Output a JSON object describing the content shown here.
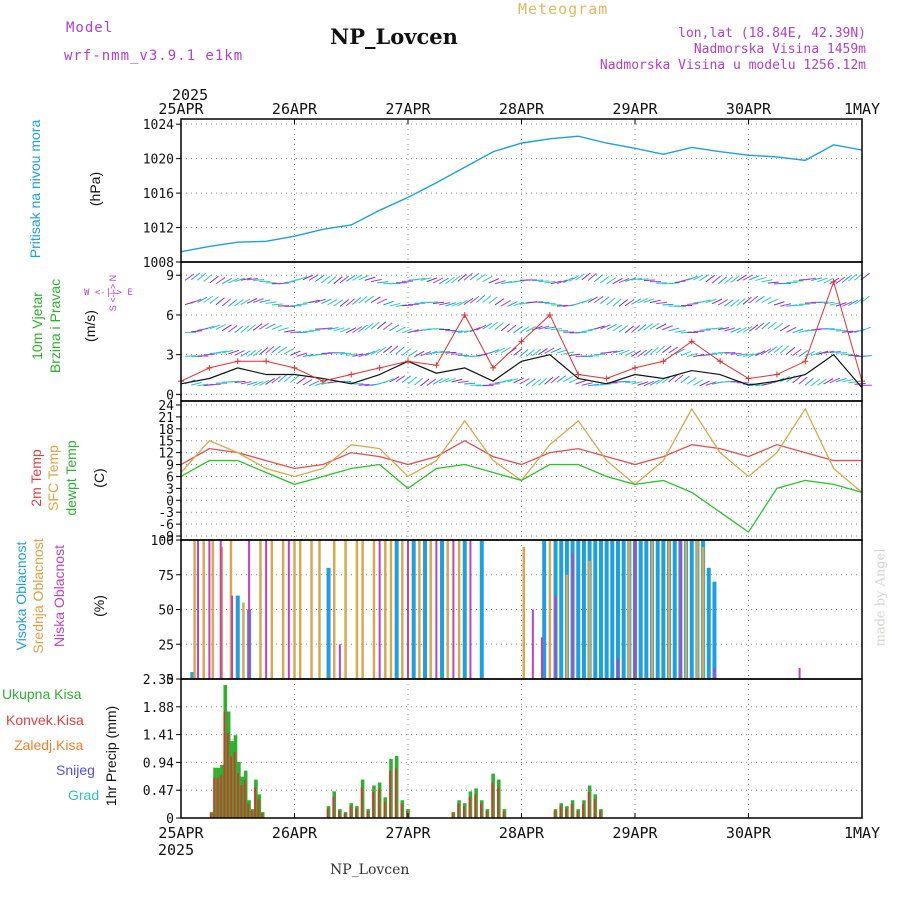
{
  "header": {
    "model_label": "Model",
    "model_name": "wrf-nmm_v3.9.1 e1km",
    "product": "Meteogram",
    "station": "NP_Lovcen",
    "location": "lon,lat (18.84E, 42.39N)",
    "altitude": "Nadmorska Visina 1459m",
    "model_altitude": "Nadmorska Visina u modelu 1256.12m",
    "footer_station": "NP_Lovcen",
    "credit": "made by Angel"
  },
  "colors": {
    "pressure": "#1e9fe0",
    "wind": "#111111",
    "wind_gust_marks": "#e03030",
    "temp2m": "#e05050",
    "sfc_temp": "#d8a850",
    "dewpoint": "#30c030",
    "cloud_high": "#1e9fe0",
    "cloud_mid": "#d8a850",
    "cloud_low": "#c040c0",
    "precip_total": "#30b030",
    "precip_conv": "#e03030",
    "precip_frz": "#f08030",
    "precip_snow": "#5050e0",
    "precip_grad": "#30c0b0",
    "label_purple": "#b040c8",
    "label_blue": "#1e9fe0",
    "label_red": "#e04040",
    "label_orange": "#e0a040",
    "label_green": "#30b030"
  },
  "time_axis": {
    "year_top": "2025",
    "year_bottom": "2025",
    "ticks": [
      "25APR",
      "26APR",
      "27APR",
      "28APR",
      "29APR",
      "30APR",
      "1MAY"
    ]
  },
  "chart_data": [
    {
      "type": "line",
      "panel": "pressure",
      "ylabel_left": "Pritisak na nivou mora",
      "ylabel_unit": "(hPa)",
      "yticks": [
        "1008",
        "1012",
        "1016",
        "1020",
        "1024"
      ],
      "ylim": [
        1008,
        1024.6
      ],
      "x_days": [
        0,
        0.25,
        0.5,
        0.75,
        1.0,
        1.25,
        1.5,
        1.75,
        2.0,
        2.25,
        2.5,
        2.75,
        3.0,
        3.25,
        3.5,
        3.75,
        4.0,
        4.25,
        4.5,
        4.75,
        5.0,
        5.25,
        5.5,
        5.75,
        6.0
      ],
      "values": [
        1009.2,
        1009.8,
        1010.3,
        1010.4,
        1011.0,
        1011.8,
        1012.3,
        1014.0,
        1015.5,
        1017.2,
        1019.0,
        1020.8,
        1021.8,
        1022.3,
        1022.6,
        1021.8,
        1021.2,
        1020.5,
        1021.3,
        1020.8,
        1020.4,
        1020.2,
        1019.8,
        1021.6,
        1021.0
      ]
    },
    {
      "type": "line",
      "panel": "wind",
      "ylabel_left": "10m Vjetar",
      "ylabel_left2": "Brzina i Pravac",
      "ylabel_unit": "(m/s)",
      "compass": "W <-|-> E",
      "compass2": "S <-|-> N",
      "yticks": [
        "0",
        "3",
        "6",
        "9"
      ],
      "ylim": [
        -0.5,
        10
      ],
      "x_days": [
        0,
        0.25,
        0.5,
        0.75,
        1.0,
        1.25,
        1.5,
        1.75,
        2.0,
        2.25,
        2.5,
        2.75,
        3.0,
        3.25,
        3.5,
        3.75,
        4.0,
        4.25,
        4.5,
        4.75,
        5.0,
        5.25,
        5.5,
        5.75,
        6.0
      ],
      "speed": [
        0.8,
        1.2,
        2.0,
        1.5,
        1.5,
        1.2,
        0.8,
        1.5,
        2.5,
        1.6,
        2.0,
        1.0,
        2.5,
        3.0,
        1.2,
        0.8,
        1.5,
        1.2,
        1.8,
        1.5,
        0.7,
        1.0,
        1.5,
        3.0,
        0.5
      ],
      "gust": [
        1.0,
        2.0,
        2.5,
        2.5,
        2.0,
        1.0,
        1.5,
        2.0,
        2.5,
        2.2,
        6.0,
        2.0,
        4.0,
        6.0,
        1.5,
        1.2,
        2.0,
        2.5,
        4.0,
        2.5,
        1.2,
        1.5,
        2.5,
        8.5,
        1.0
      ]
    },
    {
      "type": "line",
      "panel": "temperature",
      "ylabel_left": "2m Temp",
      "ylabel_left2": "SFC Temp",
      "ylabel_left3": "dewpt Temp",
      "ylabel_unit": "(C)",
      "yticks": [
        "-9",
        "-6",
        "-3",
        "0",
        "3",
        "6",
        "9",
        "12",
        "15",
        "18",
        "21",
        "24"
      ],
      "ylim": [
        -10,
        25
      ],
      "x_days": [
        0,
        0.25,
        0.5,
        0.75,
        1.0,
        1.25,
        1.5,
        1.75,
        2.0,
        2.25,
        2.5,
        2.75,
        3.0,
        3.25,
        3.5,
        3.75,
        4.0,
        4.25,
        4.5,
        4.75,
        5.0,
        5.25,
        5.5,
        5.75,
        6.0
      ],
      "series": [
        {
          "name": "2m Temp",
          "values": [
            9,
            13,
            12,
            10,
            8,
            9,
            12,
            11,
            9,
            11,
            15,
            11,
            9,
            12,
            13,
            11,
            9,
            11,
            14,
            13,
            11,
            14,
            12,
            10,
            10
          ]
        },
        {
          "name": "SFC Temp",
          "values": [
            7,
            15,
            12,
            8,
            6,
            8,
            14,
            13,
            6,
            10,
            20,
            10,
            5,
            14,
            20,
            10,
            4,
            10,
            23,
            12,
            6,
            12,
            23,
            8,
            2
          ]
        },
        {
          "name": "dewpt Temp",
          "values": [
            6,
            10,
            10,
            7,
            4,
            6,
            8,
            9,
            3,
            8,
            9,
            7,
            5,
            9,
            9,
            6,
            4,
            5,
            2,
            -3,
            -8,
            3,
            5,
            4,
            2
          ]
        }
      ]
    },
    {
      "type": "bar",
      "panel": "clouds",
      "ylabel_left": "Visoka Oblacnost",
      "ylabel_left2": "Srednja Oblacnost",
      "ylabel_left3": "Niska Oblacnost",
      "ylabel_unit": "(%)",
      "yticks": [
        "0",
        "25",
        "50",
        "75",
        "100"
      ],
      "ylim": [
        0,
        100
      ],
      "series": [
        {
          "name": "Visoka Oblacnost",
          "values": [
            [
              0.1,
              5
            ],
            [
              0.5,
              60
            ],
            [
              0.6,
              50
            ],
            [
              1.3,
              80
            ],
            [
              1.9,
              100
            ],
            [
              2.05,
              100
            ],
            [
              2.15,
              100
            ],
            [
              2.3,
              100
            ],
            [
              2.5,
              100
            ],
            [
              2.65,
              100
            ],
            [
              3.2,
              100
            ],
            [
              3.3,
              100
            ],
            [
              3.35,
              100
            ],
            [
              3.4,
              100
            ],
            [
              3.45,
              100
            ],
            [
              3.5,
              100
            ],
            [
              3.55,
              100
            ],
            [
              3.6,
              100
            ],
            [
              3.65,
              100
            ],
            [
              3.7,
              100
            ],
            [
              3.75,
              100
            ],
            [
              3.8,
              100
            ],
            [
              3.85,
              100
            ],
            [
              3.9,
              100
            ],
            [
              3.95,
              100
            ],
            [
              4.0,
              100
            ],
            [
              4.05,
              100
            ],
            [
              4.1,
              100
            ],
            [
              4.15,
              100
            ],
            [
              4.2,
              100
            ],
            [
              4.25,
              100
            ],
            [
              4.3,
              100
            ],
            [
              4.35,
              100
            ],
            [
              4.4,
              100
            ],
            [
              4.45,
              100
            ],
            [
              4.5,
              100
            ],
            [
              4.55,
              100
            ],
            [
              4.6,
              100
            ],
            [
              4.65,
              80
            ],
            [
              4.7,
              70
            ]
          ]
        },
        {
          "name": "Srednja Oblacnost",
          "values": [
            [
              0.12,
              100
            ],
            [
              0.2,
              100
            ],
            [
              0.28,
              100
            ],
            [
              0.36,
              95
            ],
            [
              0.44,
              100
            ],
            [
              0.55,
              55
            ],
            [
              0.7,
              100
            ],
            [
              0.8,
              100
            ],
            [
              0.9,
              100
            ],
            [
              1.0,
              100
            ],
            [
              1.05,
              100
            ],
            [
              1.15,
              100
            ],
            [
              1.22,
              100
            ],
            [
              1.35,
              100
            ],
            [
              1.45,
              100
            ],
            [
              1.55,
              100
            ],
            [
              1.6,
              100
            ],
            [
              1.7,
              100
            ],
            [
              1.8,
              100
            ],
            [
              1.85,
              100
            ],
            [
              1.95,
              100
            ],
            [
              2.1,
              100
            ],
            [
              2.2,
              100
            ],
            [
              2.35,
              100
            ],
            [
              2.45,
              100
            ],
            [
              3.02,
              95
            ],
            [
              3.25,
              100
            ],
            [
              3.4,
              75
            ],
            [
              3.6,
              85
            ],
            [
              3.95,
              100
            ],
            [
              4.15,
              100
            ],
            [
              4.3,
              100
            ],
            [
              4.45,
              100
            ],
            [
              4.55,
              100
            ],
            [
              4.6,
              95
            ]
          ]
        },
        {
          "name": "Niska Oblacnost",
          "values": [
            [
              0.15,
              100
            ],
            [
              0.25,
              100
            ],
            [
              0.35,
              100
            ],
            [
              0.45,
              60
            ],
            [
              0.6,
              100
            ],
            [
              0.75,
              100
            ],
            [
              0.95,
              100
            ],
            [
              1.4,
              25
            ],
            [
              1.75,
              100
            ],
            [
              2.0,
              100
            ],
            [
              2.25,
              100
            ],
            [
              2.4,
              100
            ],
            [
              2.55,
              100
            ],
            [
              3.1,
              50
            ],
            [
              3.18,
              30
            ],
            [
              3.3,
              60
            ],
            [
              3.45,
              90
            ],
            [
              3.85,
              15
            ],
            [
              4.0,
              100
            ],
            [
              4.4,
              100
            ],
            [
              4.7,
              8
            ],
            [
              5.45,
              8
            ]
          ]
        }
      ]
    },
    {
      "type": "bar",
      "panel": "precip",
      "legend": [
        "Ukupna Kisa",
        "Konvek.Kisa",
        "Zaledj.Kisa",
        "Snijeg",
        "Grad"
      ],
      "ylabel_unit": "1hr Precip (mm)",
      "yticks": [
        "0",
        "0.47",
        "0.94",
        "1.41",
        "1.88",
        "2.35"
      ],
      "ylim": [
        0,
        2.35
      ],
      "series": [
        {
          "name": "Ukupna Kisa",
          "values": [
            [
              0.27,
              0.1
            ],
            [
              0.3,
              0.85
            ],
            [
              0.33,
              0.85
            ],
            [
              0.36,
              0.9
            ],
            [
              0.39,
              2.25
            ],
            [
              0.42,
              1.8
            ],
            [
              0.45,
              1.3
            ],
            [
              0.48,
              1.4
            ],
            [
              0.51,
              0.95
            ],
            [
              0.54,
              0.7
            ],
            [
              0.57,
              0.8
            ],
            [
              0.6,
              0.3
            ],
            [
              0.63,
              0.15
            ],
            [
              0.66,
              0.65
            ],
            [
              0.69,
              0.4
            ],
            [
              0.72,
              0.1
            ],
            [
              1.3,
              0.2
            ],
            [
              1.35,
              0.45
            ],
            [
              1.4,
              0.15
            ],
            [
              1.45,
              0.1
            ],
            [
              1.5,
              0.25
            ],
            [
              1.55,
              0.2
            ],
            [
              1.6,
              0.65
            ],
            [
              1.65,
              0.15
            ],
            [
              1.7,
              0.55
            ],
            [
              1.75,
              0.6
            ],
            [
              1.8,
              0.35
            ],
            [
              1.85,
              1.0
            ],
            [
              1.9,
              1.05
            ],
            [
              1.95,
              0.3
            ],
            [
              2.0,
              0.15
            ],
            [
              2.4,
              0.1
            ],
            [
              2.45,
              0.3
            ],
            [
              2.5,
              0.25
            ],
            [
              2.55,
              0.45
            ],
            [
              2.6,
              0.5
            ],
            [
              2.65,
              0.3
            ],
            [
              2.7,
              0.15
            ],
            [
              2.75,
              0.75
            ],
            [
              2.8,
              0.65
            ],
            [
              2.85,
              0.15
            ],
            [
              3.3,
              0.15
            ],
            [
              3.35,
              0.25
            ],
            [
              3.4,
              0.2
            ],
            [
              3.45,
              0.3
            ],
            [
              3.5,
              0.15
            ],
            [
              3.55,
              0.3
            ],
            [
              3.6,
              0.55
            ],
            [
              3.65,
              0.4
            ],
            [
              3.7,
              0.15
            ]
          ]
        }
      ]
    }
  ]
}
